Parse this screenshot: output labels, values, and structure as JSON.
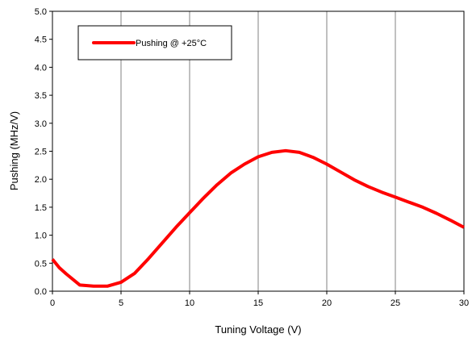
{
  "chart_data": {
    "type": "line",
    "title": "",
    "xlabel": "Tuning Voltage (V)",
    "ylabel": "Pushing (MHz/V)",
    "xlim": [
      0,
      30
    ],
    "ylim": [
      0,
      5.0
    ],
    "x_ticks": [
      0,
      5,
      10,
      15,
      20,
      25,
      30
    ],
    "x_tick_labels": [
      "0",
      "5",
      "10",
      "15",
      "20",
      "25",
      "30"
    ],
    "y_ticks": [
      0,
      0.5,
      1.0,
      1.5,
      2.0,
      2.5,
      3.0,
      3.5,
      4.0,
      4.5,
      5.0
    ],
    "y_tick_labels": [
      "0.0",
      "0.5",
      "1.0",
      "1.5",
      "2.0",
      "2.5",
      "3.0",
      "3.5",
      "4.0",
      "4.5",
      "5.0"
    ],
    "grid": "vertical",
    "legend_position": "top-left",
    "colors": {
      "series": "#ff0000",
      "grid": "#c0c0c0",
      "axis": "#000000"
    },
    "series": [
      {
        "name": "Pushing @ +25°C",
        "x": [
          0,
          0.5,
          1,
          2,
          3,
          4,
          5,
          6,
          7,
          8,
          9,
          10,
          11,
          12,
          13,
          14,
          15,
          16,
          17,
          18,
          19,
          20,
          21,
          22,
          23,
          24,
          25,
          26,
          27,
          28,
          29,
          30
        ],
        "y": [
          0.57,
          0.42,
          0.31,
          0.11,
          0.09,
          0.09,
          0.16,
          0.32,
          0.58,
          0.86,
          1.14,
          1.4,
          1.66,
          1.9,
          2.11,
          2.27,
          2.4,
          2.48,
          2.51,
          2.48,
          2.39,
          2.27,
          2.13,
          1.99,
          1.87,
          1.77,
          1.68,
          1.59,
          1.5,
          1.39,
          1.27,
          1.14
        ]
      }
    ]
  }
}
